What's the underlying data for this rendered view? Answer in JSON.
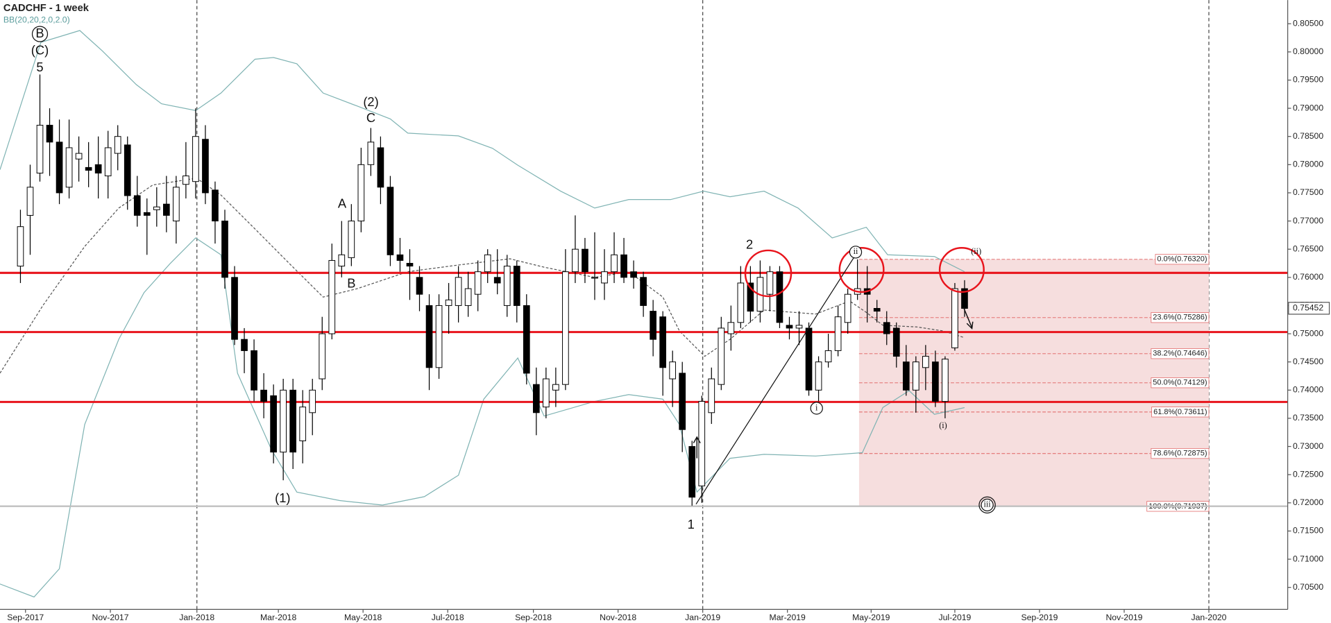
{
  "chart_data": {
    "type": "candlestick",
    "title": "CADCHF - 1 week",
    "indicator": "BB(20,20,2,0,2.0)",
    "categories": [
      null,
      null,
      null,
      null,
      null,
      null,
      null,
      null,
      null,
      null,
      null,
      null,
      null,
      null,
      null,
      null,
      null,
      null,
      null,
      null,
      null,
      null,
      null,
      null,
      null,
      null,
      null,
      null,
      null,
      null,
      null,
      null,
      null,
      null,
      null,
      null,
      null,
      null,
      null,
      null,
      null,
      null,
      null,
      null,
      null,
      null,
      null,
      null,
      null,
      null,
      null,
      null,
      null,
      null,
      null,
      null,
      null,
      null,
      null,
      null,
      null,
      null,
      null,
      null,
      null,
      null,
      null,
      null,
      null,
      null,
      null,
      null,
      null,
      null,
      null,
      null,
      null,
      null,
      null,
      null,
      null,
      null,
      null,
      null,
      null,
      null,
      null,
      null,
      null,
      null,
      null,
      null,
      null,
      null,
      null,
      null,
      null,
      null
    ],
    "open": [
      0.762,
      0.771,
      0.7785,
      0.787,
      0.784,
      0.776,
      0.781,
      0.7795,
      0.78,
      0.778,
      0.782,
      0.7835,
      0.7745,
      0.7715,
      0.772,
      0.773,
      0.77,
      0.7765,
      0.777,
      0.7845,
      0.7755,
      0.77,
      0.76,
      0.749,
      0.747,
      0.74,
      0.739,
      0.729,
      0.74,
      0.731,
      0.736,
      0.742,
      0.75,
      0.762,
      0.7635,
      0.77,
      0.78,
      0.783,
      0.776,
      0.764,
      0.7625,
      0.76,
      0.755,
      0.744,
      0.755,
      0.755,
      0.755,
      0.757,
      0.761,
      0.76,
      0.755,
      0.762,
      0.755,
      0.741,
      0.737,
      0.74,
      0.741,
      0.761,
      0.765,
      0.76,
      0.759,
      0.761,
      0.764,
      0.761,
      0.76,
      0.754,
      0.753,
      0.742,
      0.743,
      0.73,
      0.723,
      0.736,
      0.741,
      0.75,
      0.752,
      0.759,
      0.754,
      0.757,
      0.761,
      0.7515,
      0.751,
      0.751,
      0.74,
      0.745,
      0.747,
      0.752,
      0.757,
      0.758,
      0.7545,
      0.752,
      0.751,
      0.745,
      0.74,
      0.744,
      0.745,
      0.738,
      0.7475,
      0.758
    ],
    "high": [
      0.772,
      0.78,
      0.796,
      0.79,
      0.788,
      0.788,
      0.785,
      0.784,
      0.785,
      0.786,
      0.787,
      0.785,
      0.778,
      0.774,
      0.776,
      0.778,
      0.778,
      0.784,
      0.79,
      0.787,
      0.777,
      0.772,
      0.762,
      0.751,
      0.749,
      0.743,
      0.741,
      0.742,
      0.742,
      0.74,
      0.742,
      0.753,
      0.766,
      0.77,
      0.773,
      0.783,
      0.7865,
      0.785,
      0.778,
      0.767,
      0.765,
      0.762,
      0.757,
      0.757,
      0.759,
      0.762,
      0.761,
      0.763,
      0.765,
      0.765,
      0.764,
      0.763,
      0.757,
      0.744,
      0.744,
      0.744,
      0.765,
      0.771,
      0.767,
      0.768,
      0.765,
      0.768,
      0.767,
      0.763,
      0.761,
      0.756,
      0.754,
      0.747,
      0.745,
      0.731,
      0.739,
      0.744,
      0.753,
      0.755,
      0.762,
      0.762,
      0.763,
      0.762,
      0.762,
      0.753,
      0.754,
      0.752,
      0.746,
      0.75,
      0.755,
      0.758,
      0.7632,
      0.762,
      0.756,
      0.754,
      0.752,
      0.748,
      0.746,
      0.748,
      0.747,
      0.746,
      0.759,
      0.7595
    ],
    "low": [
      0.759,
      0.764,
      0.777,
      0.778,
      0.773,
      0.774,
      0.777,
      0.776,
      0.774,
      0.774,
      0.779,
      0.772,
      0.769,
      0.764,
      0.769,
      0.768,
      0.766,
      0.774,
      0.774,
      0.773,
      0.766,
      0.758,
      0.748,
      0.743,
      0.738,
      0.735,
      0.727,
      0.724,
      0.726,
      0.727,
      0.732,
      0.74,
      0.749,
      0.76,
      0.762,
      0.768,
      0.778,
      0.773,
      0.762,
      0.761,
      0.756,
      0.754,
      0.74,
      0.742,
      0.75,
      0.752,
      0.753,
      0.754,
      0.759,
      0.757,
      0.753,
      0.752,
      0.741,
      0.732,
      0.735,
      0.737,
      0.74,
      0.759,
      0.759,
      0.756,
      0.756,
      0.759,
      0.759,
      0.758,
      0.753,
      0.746,
      0.739,
      0.737,
      0.729,
      0.7195,
      0.72,
      0.734,
      0.74,
      0.747,
      0.751,
      0.752,
      0.752,
      0.754,
      0.751,
      0.749,
      0.748,
      0.739,
      0.738,
      0.744,
      0.746,
      0.75,
      0.756,
      0.752,
      0.752,
      0.748,
      0.744,
      0.739,
      0.736,
      0.74,
      0.737,
      0.735,
      0.747,
      0.753
    ],
    "close": [
      0.769,
      0.776,
      0.787,
      0.784,
      0.775,
      0.783,
      0.782,
      0.779,
      0.7785,
      0.783,
      0.785,
      0.7745,
      0.771,
      0.771,
      0.7725,
      0.771,
      0.776,
      0.778,
      0.785,
      0.775,
      0.77,
      0.76,
      0.749,
      0.747,
      0.74,
      0.738,
      0.729,
      0.74,
      0.729,
      0.737,
      0.74,
      0.75,
      0.763,
      0.764,
      0.77,
      0.78,
      0.784,
      0.776,
      0.764,
      0.763,
      0.762,
      0.757,
      0.744,
      0.755,
      0.756,
      0.76,
      0.758,
      0.761,
      0.764,
      0.759,
      0.762,
      0.755,
      0.743,
      0.736,
      0.742,
      0.741,
      0.761,
      0.765,
      0.761,
      0.76,
      0.761,
      0.764,
      0.76,
      0.76,
      0.755,
      0.749,
      0.744,
      0.745,
      0.733,
      0.721,
      0.738,
      0.742,
      0.751,
      0.752,
      0.759,
      0.754,
      0.76,
      0.761,
      0.752,
      0.751,
      0.7515,
      0.74,
      0.745,
      0.747,
      0.753,
      0.757,
      0.758,
      0.757,
      0.754,
      0.75,
      0.746,
      0.74,
      0.745,
      0.746,
      0.738,
      0.7455,
      0.758,
      0.7545
    ],
    "up_color": "#ffffff",
    "down_color": "#000000",
    "bands": {
      "color": "#7fb3b3",
      "upper": {
        "x": [
          -2.1,
          2.1,
          6.1,
          8.4,
          11.9,
          14.5,
          18.0,
          20.6,
          24.1,
          26.0,
          28.4,
          31.1,
          34.6,
          38.0,
          39.8,
          45.0,
          48.5,
          51.1,
          55.5,
          59.0,
          62.5,
          66.8,
          70.2,
          72.9,
          76.4,
          79.9,
          83.4,
          86.9,
          89.1,
          93.9,
          97.0
        ],
        "values": [
          0.7791,
          0.8017,
          0.8038,
          0.8002,
          0.7942,
          0.7908,
          0.7896,
          0.7927,
          0.7987,
          0.799,
          0.7979,
          0.7927,
          0.7904,
          0.7881,
          0.7856,
          0.7851,
          0.7829,
          0.7799,
          0.7753,
          0.7723,
          0.7738,
          0.7738,
          0.7753,
          0.7743,
          0.7753,
          0.7723,
          0.767,
          0.7689,
          0.764,
          0.7637,
          0.761
        ]
      },
      "middle": {
        "x": [
          -2.1,
          2.3,
          6.6,
          10.1,
          13.6,
          18.1,
          20.6,
          24.1,
          27.6,
          31.1,
          34.6,
          39.8,
          45.0,
          50.3,
          53.8,
          59.0,
          62.5,
          66.0,
          67.7,
          70.3,
          72.9,
          76.4,
          81.7,
          85.2,
          86.9,
          88.6,
          92.1,
          94.8,
          97.0
        ],
        "values": [
          0.743,
          0.755,
          0.7655,
          0.7723,
          0.7764,
          0.7776,
          0.7746,
          0.7686,
          0.7625,
          0.7565,
          0.758,
          0.761,
          0.7622,
          0.7633,
          0.7618,
          0.76,
          0.761,
          0.7565,
          0.7505,
          0.746,
          0.749,
          0.7542,
          0.7535,
          0.7558,
          0.7538,
          0.7515,
          0.7512,
          0.7505,
          0.7493
        ]
      },
      "lower": {
        "x": [
          -2.1,
          1.4,
          4.0,
          6.6,
          10.1,
          12.7,
          15.4,
          18.0,
          20.6,
          22.3,
          25.8,
          28.4,
          32.8,
          37.2,
          41.5,
          45.0,
          47.6,
          51.1,
          53.8,
          59.0,
          62.5,
          66.0,
          67.7,
          69.5,
          72.9,
          76.4,
          81.7,
          86.5,
          88.6,
          91.3,
          93.9,
          97.0
        ],
        "values": [
          0.7056,
          0.7033,
          0.7083,
          0.7339,
          0.749,
          0.7573,
          0.7625,
          0.767,
          0.764,
          0.743,
          0.7294,
          0.7219,
          0.7204,
          0.7196,
          0.7211,
          0.7249,
          0.7384,
          0.7457,
          0.7354,
          0.738,
          0.7392,
          0.7384,
          0.7339,
          0.7219,
          0.7279,
          0.7286,
          0.7283,
          0.7289,
          0.7369,
          0.7399,
          0.7357,
          0.7369
        ]
      }
    },
    "levels": [
      0.7608,
      0.7503,
      0.7379
    ],
    "level_color": "#e8141c",
    "support": 0.7194,
    "support_color": "#c0c0c0",
    "fib": {
      "values": [
        0.7632,
        0.75286,
        0.74646,
        0.74129,
        0.73611,
        0.72875,
        0.71937
      ],
      "value_labels": [
        "0.0%(0.76320)",
        "23.6%(0.75286)",
        "38.2%(0.74646)",
        "50.0%(0.74129)",
        "61.8%(0.73611)",
        "78.6%(0.72875)",
        "100.0%(0.71937)"
      ],
      "color": "#e06060",
      "fill": "#f6dede"
    },
    "last": 0.75452,
    "annotations": [
      "B",
      "(C)",
      "5",
      "(2)",
      "C",
      "A",
      "B",
      "(1)",
      "2",
      "1",
      "i",
      "ii",
      "(i)",
      "(ii)",
      "iii"
    ],
    "xlim": [
      -2.1,
      130.2
    ],
    "xticks": [
      {
        "value": 0.52,
        "label": "Sep-2017"
      },
      {
        "value": 9.24,
        "label": "Nov-2017"
      },
      {
        "value": 18.13,
        "label": "Jan-2018"
      },
      {
        "value": 26.5,
        "label": "Mar-2018"
      },
      {
        "value": 35.2,
        "label": "May-2018"
      },
      {
        "value": 43.9,
        "label": "Jul-2018"
      },
      {
        "value": 52.7,
        "label": "Sep-2018"
      },
      {
        "value": 61.4,
        "label": "Nov-2018"
      },
      {
        "value": 70.1,
        "label": "Jan-2019"
      },
      {
        "value": 78.8,
        "label": "Mar-2019"
      },
      {
        "value": 87.4,
        "label": "May-2019"
      },
      {
        "value": 96.0,
        "label": "Jul-2019"
      },
      {
        "value": 104.7,
        "label": "Sep-2019"
      },
      {
        "value": 113.4,
        "label": "Nov-2019"
      },
      {
        "value": 122.1,
        "label": "Jan-2020"
      }
    ],
    "ylim": [
      0.7011,
      0.8092
    ],
    "yticks": [
      {
        "value": 0.705,
        "label": "0.70500"
      },
      {
        "value": 0.71,
        "label": "0.71000"
      },
      {
        "value": 0.715,
        "label": "0.71500"
      },
      {
        "value": 0.72,
        "label": "0.72000"
      },
      {
        "value": 0.725,
        "label": "0.72500"
      },
      {
        "value": 0.73,
        "label": "0.73000"
      },
      {
        "value": 0.735,
        "label": "0.73500"
      },
      {
        "value": 0.74,
        "label": "0.74000"
      },
      {
        "value": 0.745,
        "label": "0.74500"
      },
      {
        "value": 0.75,
        "label": "0.75000"
      },
      {
        "value": 0.755,
        "label": "0.75500"
      },
      {
        "value": 0.76,
        "label": "0.76000"
      },
      {
        "value": 0.765,
        "label": "0.76500"
      },
      {
        "value": 0.77,
        "label": "0.77000"
      },
      {
        "value": 0.775,
        "label": "0.77500"
      },
      {
        "value": 0.78,
        "label": "0.78000"
      },
      {
        "value": 0.785,
        "label": "0.78500"
      },
      {
        "value": 0.79,
        "label": "0.79000"
      },
      {
        "value": 0.795,
        "label": "0.79500"
      },
      {
        "value": 0.8,
        "label": "0.80000"
      },
      {
        "value": 0.805,
        "label": "0.80500"
      }
    ]
  }
}
